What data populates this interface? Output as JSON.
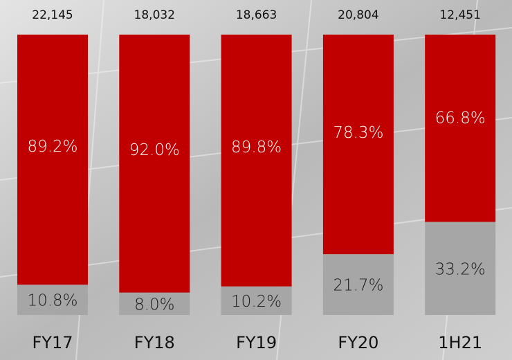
{
  "chart_data": {
    "type": "stacked-bar",
    "categories": [
      "FY17",
      "FY18",
      "FY19",
      "FY20",
      "1H21"
    ],
    "series": [
      {
        "color": "#c00000",
        "values": [
          89.2,
          92.0,
          89.8,
          78.3,
          66.8
        ],
        "value_labels": [
          "89.2%",
          "92.0%",
          "89.8%",
          "78.3%",
          "66.8%"
        ]
      },
      {
        "color": "#a6a6a6",
        "values": [
          10.8,
          8.0,
          10.2,
          21.7,
          33.2
        ],
        "value_labels": [
          "10.8%",
          "8.0%",
          "10.2%",
          "21.7%",
          "33.2%"
        ]
      }
    ],
    "totals": [
      {
        "value": 22145,
        "label": "22,145"
      },
      {
        "value": 18032,
        "label": "18,032"
      },
      {
        "value": 18663,
        "label": "18,663"
      },
      {
        "value": 20804,
        "label": "20,804"
      },
      {
        "value": 12451,
        "label": "12,451"
      }
    ],
    "ylim": [
      0,
      100
    ]
  }
}
